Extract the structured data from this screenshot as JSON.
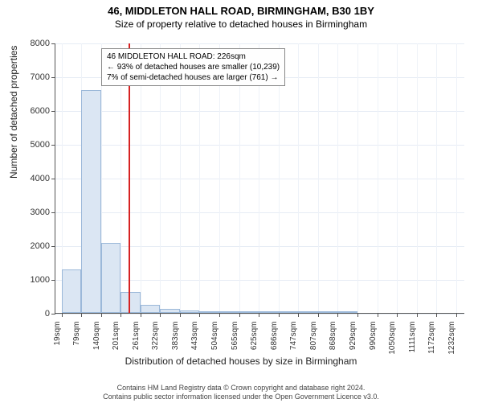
{
  "title": "46, MIDDLETON HALL ROAD, BIRMINGHAM, B30 1BY",
  "subtitle": "Size of property relative to detached houses in Birmingham",
  "yaxis_title": "Number of detached properties",
  "xaxis_title": "Distribution of detached houses by size in Birmingham",
  "infobox": {
    "line1": "46 MIDDLETON HALL ROAD: 226sqm",
    "line2": "← 93% of detached houses are smaller (10,239)",
    "line3": "7% of semi-detached houses are larger (761) →"
  },
  "footer": {
    "line1": "Contains HM Land Registry data © Crown copyright and database right 2024.",
    "line2": "Contains public sector information licensed under the Open Government Licence v3.0."
  },
  "chart": {
    "type": "histogram",
    "background_color": "#ffffff",
    "grid_color": "#e6ecf5",
    "bar_fill": "#dbe6f3",
    "bar_stroke": "#9bb8d9",
    "refline_color": "#d62222",
    "refline_x": 226,
    "yticks": [
      0,
      1000,
      2000,
      3000,
      4000,
      5000,
      6000,
      7000,
      8000
    ],
    "ylim": [
      0,
      8000
    ],
    "xlim": [
      0,
      1260
    ],
    "xticks": [
      {
        "pos": 19,
        "label": "19sqm"
      },
      {
        "pos": 79,
        "label": "79sqm"
      },
      {
        "pos": 140,
        "label": "140sqm"
      },
      {
        "pos": 201,
        "label": "201sqm"
      },
      {
        "pos": 261,
        "label": "261sqm"
      },
      {
        "pos": 322,
        "label": "322sqm"
      },
      {
        "pos": 383,
        "label": "383sqm"
      },
      {
        "pos": 443,
        "label": "443sqm"
      },
      {
        "pos": 504,
        "label": "504sqm"
      },
      {
        "pos": 565,
        "label": "565sqm"
      },
      {
        "pos": 625,
        "label": "625sqm"
      },
      {
        "pos": 686,
        "label": "686sqm"
      },
      {
        "pos": 747,
        "label": "747sqm"
      },
      {
        "pos": 807,
        "label": "807sqm"
      },
      {
        "pos": 868,
        "label": "868sqm"
      },
      {
        "pos": 929,
        "label": "929sqm"
      },
      {
        "pos": 990,
        "label": "990sqm"
      },
      {
        "pos": 1050,
        "label": "1050sqm"
      },
      {
        "pos": 1111,
        "label": "1111sqm"
      },
      {
        "pos": 1172,
        "label": "1172sqm"
      },
      {
        "pos": 1232,
        "label": "1232sqm"
      }
    ],
    "bars": [
      {
        "x0": 19,
        "x1": 79,
        "count": 1280
      },
      {
        "x0": 79,
        "x1": 140,
        "count": 6600
      },
      {
        "x0": 140,
        "x1": 201,
        "count": 2060
      },
      {
        "x0": 201,
        "x1": 261,
        "count": 620
      },
      {
        "x0": 261,
        "x1": 322,
        "count": 230
      },
      {
        "x0": 322,
        "x1": 383,
        "count": 110
      },
      {
        "x0": 383,
        "x1": 443,
        "count": 60
      },
      {
        "x0": 443,
        "x1": 504,
        "count": 40
      },
      {
        "x0": 504,
        "x1": 565,
        "count": 25
      },
      {
        "x0": 565,
        "x1": 625,
        "count": 15
      },
      {
        "x0": 625,
        "x1": 686,
        "count": 10
      },
      {
        "x0": 686,
        "x1": 747,
        "count": 6
      },
      {
        "x0": 747,
        "x1": 807,
        "count": 4
      },
      {
        "x0": 807,
        "x1": 868,
        "count": 2
      },
      {
        "x0": 868,
        "x1": 929,
        "count": 2
      }
    ]
  }
}
